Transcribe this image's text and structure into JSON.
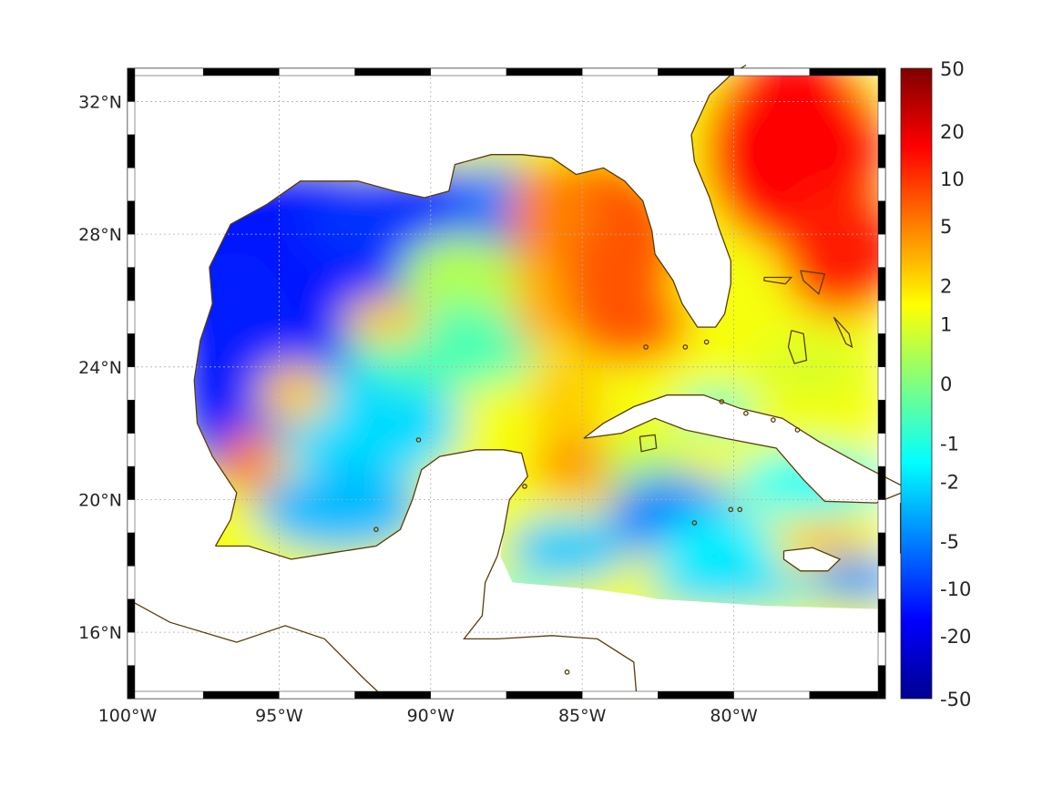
{
  "map": {
    "lon_range": [
      -100,
      -75
    ],
    "lat_range": [
      14,
      33
    ],
    "lon_ticks": [
      {
        "value": -100,
        "label": "100°W"
      },
      {
        "value": -95,
        "label": "95°W"
      },
      {
        "value": -90,
        "label": "90°W"
      },
      {
        "value": -85,
        "label": "85°W"
      },
      {
        "value": -80,
        "label": "80°W"
      }
    ],
    "lat_ticks": [
      {
        "value": 16,
        "label": "16°N"
      },
      {
        "value": 20,
        "label": "20°N"
      },
      {
        "value": 24,
        "label": "24°N"
      },
      {
        "value": 28,
        "label": "28°N"
      },
      {
        "value": 32,
        "label": "32°N"
      }
    ],
    "grid": true,
    "frame_style": "alternating black/white border",
    "coastline_color": "#5a3d0a",
    "land_color": "#ffffff",
    "colormap": "jet"
  },
  "colorbar": {
    "placement": "right",
    "tick_labels": [
      "50",
      "20",
      "10",
      "5",
      "2",
      "1",
      "0",
      "-1",
      "-2",
      "-5",
      "-10",
      "-20",
      "-50"
    ]
  },
  "field": {
    "description_regions": [
      {
        "region": "western Gulf",
        "approx_value": -15
      },
      {
        "region": "northeastern Gulf / Florida shelf",
        "approx_value": 10
      },
      {
        "region": "Atlantic east of Florida",
        "approx_value": 20
      },
      {
        "region": "Caribbean Sea",
        "approx_value": -2
      },
      {
        "region": "Bay of Campeche eddy",
        "approx_value": 4
      },
      {
        "region": "central Gulf band",
        "approx_value": 1
      }
    ]
  }
}
